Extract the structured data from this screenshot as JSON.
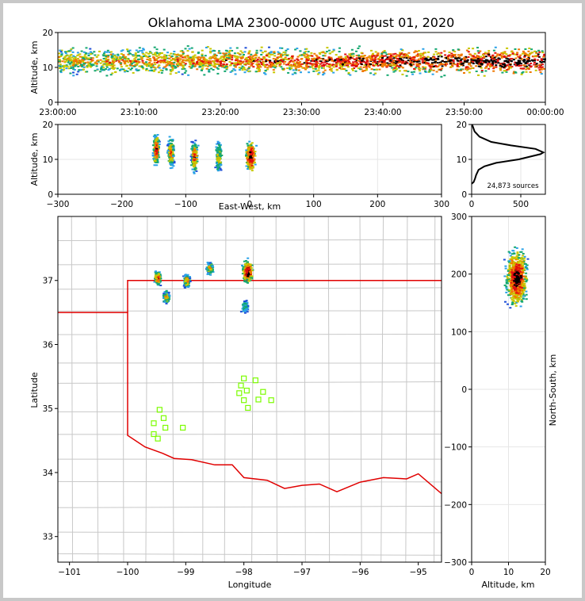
{
  "title": "Oklahoma LMA 2300-0000 UTC August 01, 2020",
  "colors": {
    "frame_bg": "#ffffff",
    "border": "#c8c8c8",
    "state_boundary": "#e00000",
    "county_lines": "#c8c8c8",
    "station_marker": "#7cfc00",
    "colormap": [
      "#1f4fd8",
      "#2aa2e8",
      "#15a870",
      "#c8c800",
      "#f07800",
      "#e01010",
      "#000000"
    ]
  },
  "chart_data": [
    {
      "id": "time_altitude",
      "type": "heatmap",
      "ylabel": "Altitude, km",
      "ylim": [
        0,
        20
      ],
      "yticks": [
        "0",
        "10",
        "20"
      ],
      "xlim": [
        "23:00:00",
        "00:00:00"
      ],
      "xticks": [
        "23:00:00",
        "23:10:00",
        "23:20:00",
        "23:30:00",
        "23:40:00",
        "23:50:00",
        "00:00:00"
      ],
      "density_band": {
        "x_range": [
          "23:00:00",
          "00:00:00"
        ],
        "y_center_km": 12,
        "y_spread_km": 4
      }
    },
    {
      "id": "eastwest_altitude",
      "type": "heatmap",
      "xlabel": "East-West, km",
      "ylabel": "Altitude, km",
      "xlim": [
        -300,
        300
      ],
      "xticks": [
        "−300",
        "−200",
        "−100",
        "0",
        "100",
        "200",
        "300"
      ],
      "ylim": [
        0,
        20
      ],
      "yticks": [
        "0",
        "10",
        "20"
      ],
      "clusters": [
        {
          "x_km": -148,
          "alt_km": 13,
          "intensity": 0.85
        },
        {
          "x_km": -125,
          "alt_km": 12,
          "intensity": 0.7
        },
        {
          "x_km": -88,
          "alt_km": 11,
          "intensity": 0.8
        },
        {
          "x_km": -50,
          "alt_km": 11,
          "intensity": 0.6
        },
        {
          "x_km": 0,
          "alt_km": 11,
          "intensity": 1.0
        }
      ]
    },
    {
      "id": "altitude_histogram",
      "type": "line",
      "xlim": [
        0,
        750
      ],
      "xticks": [
        "0",
        "500"
      ],
      "ylim": [
        0,
        20
      ],
      "yticks": [
        "0",
        "10",
        "20"
      ],
      "annotation": "24,873 sources",
      "points": [
        [
          0,
          3
        ],
        [
          20,
          3.5
        ],
        [
          35,
          4.5
        ],
        [
          45,
          5.5
        ],
        [
          70,
          7
        ],
        [
          130,
          8
        ],
        [
          250,
          9
        ],
        [
          480,
          10
        ],
        [
          700,
          11.5
        ],
        [
          730,
          12
        ],
        [
          650,
          13
        ],
        [
          400,
          14
        ],
        [
          200,
          15
        ],
        [
          80,
          16.5
        ],
        [
          30,
          18
        ],
        [
          5,
          20
        ]
      ]
    },
    {
      "id": "plan_view",
      "type": "scatter",
      "xlabel": "Longitude",
      "ylabel": "Latitude",
      "xlim": [
        -101.2,
        -94.6
      ],
      "ylim": [
        32.6,
        38.0
      ],
      "xticks": [
        "−101",
        "−100",
        "−99",
        "−98",
        "−97",
        "−96",
        "−95"
      ],
      "yticks": [
        "33",
        "34",
        "35",
        "36",
        "37"
      ],
      "stations": [
        {
          "lon": -99.45,
          "lat": 34.98
        },
        {
          "lon": -99.38,
          "lat": 34.85
        },
        {
          "lon": -99.55,
          "lat": 34.77
        },
        {
          "lon": -99.35,
          "lat": 34.7
        },
        {
          "lon": -99.05,
          "lat": 34.7
        },
        {
          "lon": -99.55,
          "lat": 34.6
        },
        {
          "lon": -99.48,
          "lat": 34.53
        },
        {
          "lon": -98.0,
          "lat": 35.47
        },
        {
          "lon": -97.8,
          "lat": 35.44
        },
        {
          "lon": -98.05,
          "lat": 35.36
        },
        {
          "lon": -97.95,
          "lat": 35.28
        },
        {
          "lon": -98.08,
          "lat": 35.24
        },
        {
          "lon": -97.67,
          "lat": 35.26
        },
        {
          "lon": -97.75,
          "lat": 35.14
        },
        {
          "lon": -97.53,
          "lat": 35.13
        },
        {
          "lon": -98.0,
          "lat": 35.13
        },
        {
          "lon": -97.93,
          "lat": 35.01
        }
      ],
      "clusters": [
        {
          "lon": -99.5,
          "lat": 37.05,
          "intensity": 0.85
        },
        {
          "lon": -99.35,
          "lat": 36.75,
          "intensity": 0.6
        },
        {
          "lon": -99.0,
          "lat": 37.0,
          "intensity": 0.7
        },
        {
          "lon": -98.6,
          "lat": 37.2,
          "intensity": 0.6
        },
        {
          "lon": -97.95,
          "lat": 37.15,
          "intensity": 1.0
        },
        {
          "lon": -98.0,
          "lat": 36.6,
          "intensity": 0.4
        }
      ]
    },
    {
      "id": "northsouth_altitude",
      "type": "heatmap",
      "xlabel": "Altitude, km",
      "ylabel": "North-South, km",
      "xlim": [
        0,
        20
      ],
      "xticks": [
        "0",
        "10",
        "20"
      ],
      "ylim": [
        -300,
        300
      ],
      "yticks": [
        "−300",
        "−200",
        "−100",
        "0",
        "100",
        "200",
        "300"
      ],
      "cluster": {
        "alt_km": 12,
        "ns_km": 195,
        "intensity": 1.0
      }
    }
  ]
}
